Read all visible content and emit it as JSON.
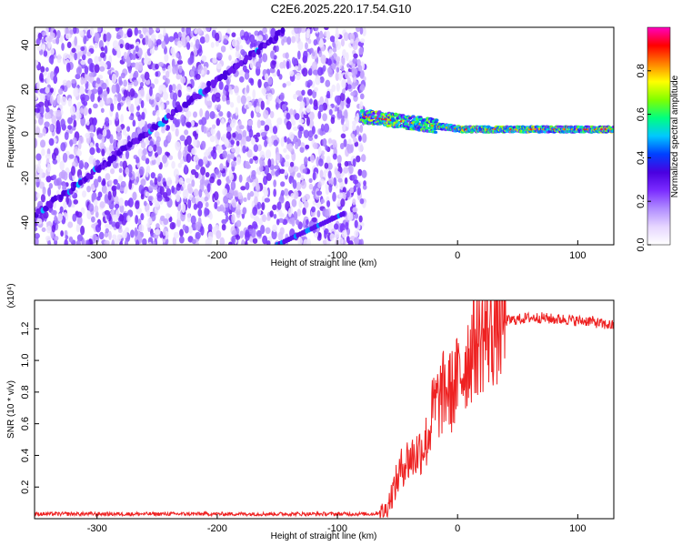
{
  "title": "C2E6.2025.220.17.54.G10",
  "colors": {
    "snr_line": "#ee2222",
    "axis": "#000000",
    "colormap": [
      "#ffffff",
      "#e6d6ff",
      "#b08cff",
      "#7b2cff",
      "#4a00e0",
      "#0040ff",
      "#00c8ff",
      "#00ff80",
      "#80ff00",
      "#ffff00",
      "#ff8000",
      "#ff0000",
      "#ff00c0"
    ]
  },
  "chart_data": [
    {
      "type": "heatmap",
      "title": "C2E6.2025.220.17.54.G10",
      "xlabel": "Height of straight line (km)",
      "ylabel": "Frequency (Hz)",
      "xlim": [
        -352,
        130
      ],
      "ylim": [
        -50,
        48
      ],
      "x_ticks": [
        -300,
        -200,
        -100,
        0,
        100
      ],
      "y_ticks": [
        -40,
        -20,
        0,
        20,
        40
      ],
      "features": {
        "diagonal_track": {
          "x_start": -352,
          "y_start": -37,
          "x_end": -145,
          "y_end": 46
        },
        "second_track": {
          "x_start": -150,
          "y_start": -50,
          "x_end": -95,
          "y_end": -36
        },
        "noise_region": {
          "x_from": -352,
          "x_to": -77
        },
        "carrier_line": {
          "x_from": -80,
          "x_to": 130,
          "freq_start": 8,
          "freq_end": 2
        }
      },
      "colorbar": {
        "label": "Normalized spectral amplitude",
        "range": [
          0,
          1
        ],
        "ticks": [
          "0.0",
          "0.2",
          "0.4",
          "0.6",
          "0.8"
        ]
      }
    },
    {
      "type": "line",
      "xlabel": "Height of straight line (km)",
      "ylabel": "SNR (10 * v/v)",
      "multiplier": "(x10⁴)",
      "xlim": [
        -352,
        130
      ],
      "ylim": [
        0,
        1.38
      ],
      "x_ticks": [
        -300,
        -200,
        -100,
        0,
        100
      ],
      "y_ticks": [
        "0.2",
        "0.4",
        "0.6",
        "0.8",
        "1.0",
        "1.2"
      ],
      "series": [
        {
          "x": [
            -352,
            -300,
            -250,
            -200,
            -150,
            -100,
            -70,
            -60,
            -55,
            -50,
            -45,
            -40,
            -35,
            -30,
            -25,
            -20,
            -15,
            -10,
            -5,
            0,
            5,
            10,
            15,
            20,
            25,
            30,
            35,
            40,
            50,
            60,
            70,
            80,
            90,
            100,
            110,
            120,
            130
          ],
          "y": [
            0.03,
            0.03,
            0.03,
            0.03,
            0.03,
            0.03,
            0.03,
            0.05,
            0.15,
            0.25,
            0.35,
            0.38,
            0.4,
            0.45,
            0.5,
            0.7,
            0.75,
            0.82,
            0.8,
            0.88,
            0.95,
            1.05,
            1.12,
            1.15,
            1.18,
            1.2,
            1.23,
            1.25,
            1.26,
            1.27,
            1.27,
            1.26,
            1.26,
            1.25,
            1.25,
            1.23,
            1.22
          ]
        }
      ]
    }
  ]
}
